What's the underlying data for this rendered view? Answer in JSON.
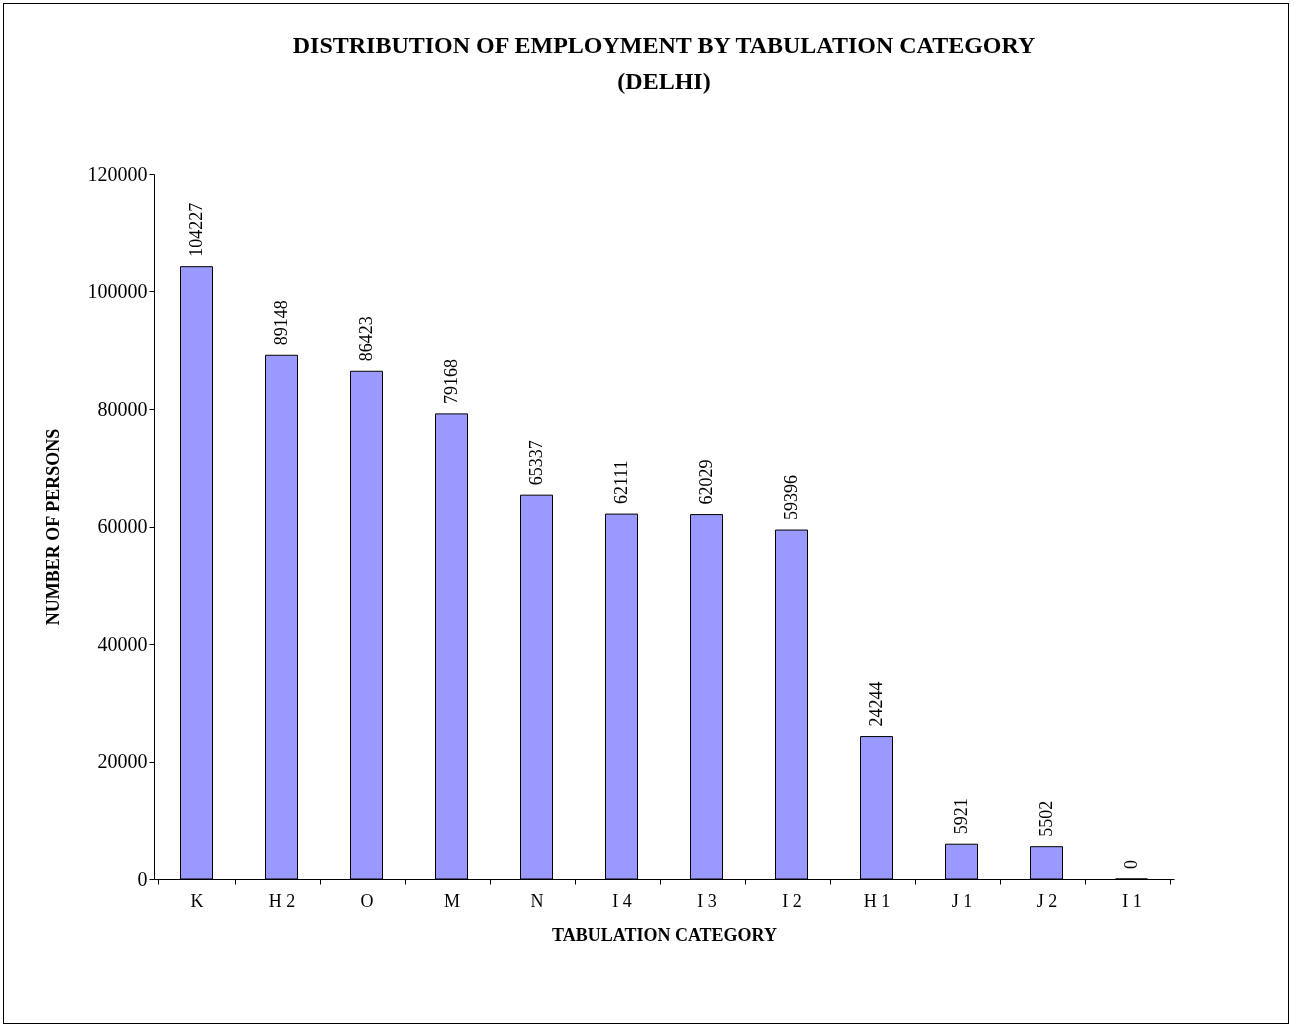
{
  "chart_data": {
    "type": "bar",
    "title": [
      "DISTRIBUTION OF EMPLOYMENT BY TABULATION CATEGORY",
      "(DELHI)"
    ],
    "xlabel": "TABULATION CATEGORY",
    "ylabel": "NUMBER OF PERSONS",
    "categories": [
      "K",
      "H 2",
      "O",
      "M",
      "N",
      "I 4",
      "I 3",
      "I 2",
      "H 1",
      "J 1",
      "J 2",
      "I 1"
    ],
    "values": [
      104227,
      89148,
      86423,
      79168,
      65337,
      62111,
      62029,
      59396,
      24244,
      5921,
      5502,
      0
    ],
    "color": "#9999ff",
    "ylim": [
      0,
      120000
    ],
    "yticks": [
      0,
      20000,
      40000,
      60000,
      80000,
      100000,
      120000
    ],
    "grid": false,
    "data_labels": true
  }
}
